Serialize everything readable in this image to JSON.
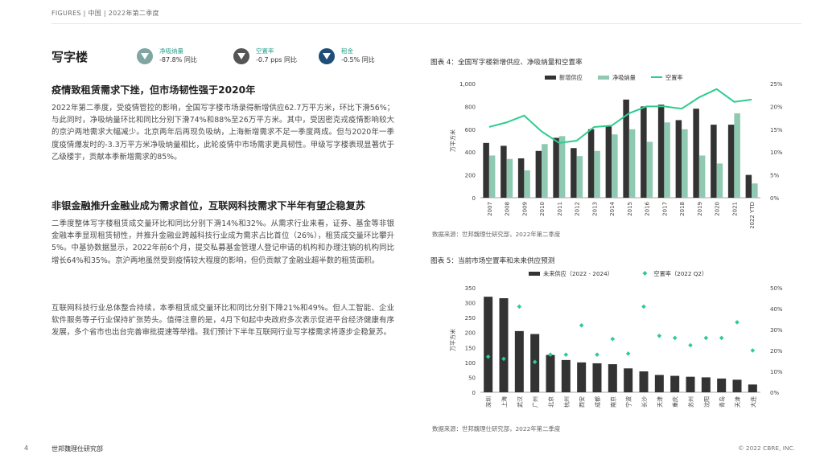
{
  "header": {
    "breadcrumb": "FIGURES | 中国 | 2022年第二季度"
  },
  "section": {
    "title": "写字楼"
  },
  "kpis": [
    {
      "label": "净吸纳量",
      "value": "-87.8% 同比",
      "color": "#7fa6a0",
      "icon": "down-triangle-icon"
    },
    {
      "label": "空置率",
      "value": "-0.7 pps 同比",
      "color": "#555555",
      "icon": "down-triangle-icon"
    },
    {
      "label": "租金",
      "value": "-0.5% 同比",
      "color": "#1f4e79",
      "icon": "down-triangle-icon"
    }
  ],
  "article": {
    "h1": "疫情致租赁需求下挫，但市场韧性强于2020年",
    "p1": "2022年第二季度，受疫情管控的影响，全国写字楼市场录得新增供应62.7万平方米，环比下滑56%；与此同时，净吸纳量环比和同比分别下滑74%和88%至26万平方米。其中，受因密克戎疫情影响较大的京沪两地需求大幅减少。北京两年后再现负吸纳，上海新增需求不足一季度两成。但与2020年一季度疫情爆发时的-3.3万平方米净吸纳量相比，此轮疫情中市场需求更具韧性。甲级写字楼表现显著优于乙级楼宇，贡献本季新增需求的85%。",
    "h2": "非银金融推升金融业成为需求首位，互联网科技需求下半年有望企稳复苏",
    "p2": "二季度整体写字楼租赁成交量环比和同比分别下滑14%和32%。从需求行业来看，证券、基金等非银金融本季显现租赁韧性，并推升金融业跨越科技行业成为需求占比首位（26%），租赁成交量环比攀升5%。中基协数据显示，2022年前6个月，提交私募基金管理人登记申请的机构和办理注销的机构同比增长64%和35%。京沪两地虽然受到疫情较大程度的影响，但仍贡献了金融业超半数的租赁面积。",
    "p3": "互联网科技行业总体整合持续，本季租赁成交量环比和同比分别下降21%和49%。但人工智能、企业软件服务等子行业保持扩张势头。值得注意的是，4月下旬起中央政府多次表示促进平台经济健康有序发展，多个省市也出台完善审批提速等举措。我们预计下半年互联网行业写字楼需求将逐步企稳复苏。"
  },
  "figure4": {
    "title": "图表 4：全国写字楼新增供应、净吸纳量和空置率",
    "source": "数据来源：世邦魏理仕研究部，2022年第二季度"
  },
  "figure5": {
    "title": "图表 5：当前市场空置率和未来供应预测",
    "source": "数据来源：世邦魏理仕研究部，2022年第二季度"
  },
  "chart_data": [
    {
      "type": "bar",
      "subtype": "bar+line",
      "categories": [
        "2007",
        "2008",
        "2009",
        "2010",
        "2011",
        "2012",
        "2013",
        "2014",
        "2015",
        "2016",
        "2017",
        "2018",
        "2019",
        "2020",
        "2021",
        "2022 YTD"
      ],
      "series": [
        {
          "name": "新增供应",
          "kind": "bar",
          "axis": "left",
          "color": "#333333",
          "values": [
            480,
            455,
            345,
            410,
            525,
            435,
            600,
            625,
            860,
            800,
            815,
            680,
            780,
            640,
            640,
            200
          ]
        },
        {
          "name": "净吸纳量",
          "kind": "bar",
          "axis": "left",
          "color": "#8fc9b1",
          "values": [
            370,
            340,
            240,
            470,
            540,
            365,
            410,
            555,
            600,
            490,
            660,
            600,
            370,
            300,
            740,
            125
          ]
        },
        {
          "name": "空置率",
          "kind": "line",
          "axis": "right",
          "color": "#2ecc8f",
          "values": [
            15.5,
            16.5,
            18,
            14.5,
            12,
            12.5,
            15.5,
            15.8,
            18.5,
            20,
            20,
            19.5,
            22,
            23.8,
            21,
            21.5
          ]
        }
      ],
      "ylabel": "万平方米",
      "ylim": [
        0,
        1000
      ],
      "y2lim": [
        0,
        25
      ],
      "yticks": [
        "0",
        "200",
        "400",
        "600",
        "800",
        "1,000"
      ],
      "y2ticks": [
        "0%",
        "5%",
        "10%",
        "15%",
        "20%",
        "25%"
      ],
      "legend": "top"
    },
    {
      "type": "bar",
      "subtype": "bar+scatter",
      "categories": [
        "深圳",
        "上海",
        "武汉",
        "广州",
        "北京",
        "杭州",
        "西安",
        "成都",
        "南京",
        "宁波",
        "长沙",
        "天津",
        "重庆",
        "苏州",
        "沈阳",
        "青岛",
        "天津",
        "大连"
      ],
      "series": [
        {
          "name": "未来供应（2022 - 2024）",
          "kind": "bar",
          "axis": "left",
          "color": "#333333",
          "values": [
            320,
            315,
            205,
            195,
            125,
            108,
            100,
            97,
            94,
            80,
            70,
            58,
            55,
            52,
            50,
            46,
            42,
            26
          ]
        },
        {
          "name": "空置率（2022 Q2）",
          "kind": "scatter",
          "axis": "right",
          "color": "#2ecc8f",
          "values": [
            17,
            16,
            41,
            14.5,
            18,
            18,
            32,
            18,
            25.5,
            18.5,
            41,
            27,
            26,
            22.5,
            26,
            26,
            33.5,
            20
          ]
        }
      ],
      "ylabel": "万平方米",
      "ylim": [
        0,
        350
      ],
      "y2lim": [
        0,
        50
      ],
      "yticks": [
        "0",
        "50",
        "100",
        "150",
        "200",
        "250",
        "300",
        "350"
      ],
      "y2ticks": [
        "0%",
        "10%",
        "20%",
        "30%",
        "40%",
        "50%"
      ],
      "legend": "top"
    }
  ],
  "footer": {
    "page": "4",
    "brand": "世邦魏理仕研究部",
    "copyright": "© 2022 CBRE, INC."
  }
}
